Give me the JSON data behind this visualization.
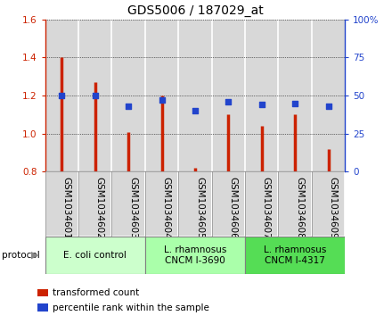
{
  "title": "GDS5006 / 187029_at",
  "samples": [
    "GSM1034601",
    "GSM1034602",
    "GSM1034603",
    "GSM1034604",
    "GSM1034605",
    "GSM1034606",
    "GSM1034607",
    "GSM1034608",
    "GSM1034609"
  ],
  "transformed_count": [
    1.4,
    1.27,
    1.01,
    1.2,
    0.82,
    1.1,
    1.04,
    1.1,
    0.92
  ],
  "percentile_rank": [
    50,
    50,
    43,
    47,
    40,
    46,
    44,
    45,
    43
  ],
  "ylim_left": [
    0.8,
    1.6
  ],
  "ylim_right": [
    0,
    100
  ],
  "yticks_left": [
    0.8,
    1.0,
    1.2,
    1.4,
    1.6
  ],
  "yticks_right": [
    0,
    25,
    50,
    75,
    100
  ],
  "bar_color": "#cc2200",
  "dot_color": "#2244cc",
  "col_bg_color": "#d8d8d8",
  "col_border_color": "#ffffff",
  "protocols": [
    {
      "label": "E. coli control",
      "start": 0,
      "end": 3,
      "color": "#ccffcc"
    },
    {
      "label": "L. rhamnosus\nCNCM I-3690",
      "start": 3,
      "end": 6,
      "color": "#aaffaa"
    },
    {
      "label": "L. rhamnosus\nCNCM I-4317",
      "start": 6,
      "end": 9,
      "color": "#55dd55"
    }
  ],
  "legend_labels": [
    "transformed count",
    "percentile rank within the sample"
  ],
  "tick_fontsize": 7.5,
  "title_fontsize": 10,
  "proto_fontsize": 7.5,
  "legend_fontsize": 7.5,
  "protocol_label": "protocol",
  "fig_width": 4.4,
  "fig_height": 3.63,
  "dpi": 100
}
